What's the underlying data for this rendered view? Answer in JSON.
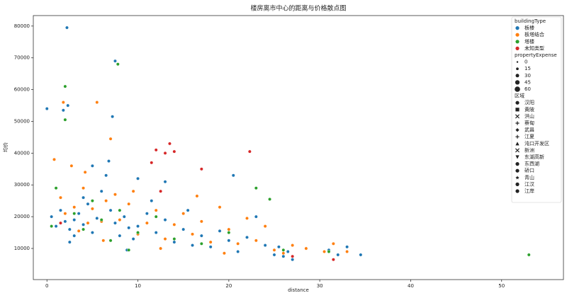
{
  "chart_data": {
    "type": "scatter",
    "title": "楼房离市中心的距离与价格散点图",
    "xlabel": "distance",
    "ylabel": "均价",
    "xlim": [
      -1.5,
      56.8
    ],
    "ylim": [
      200,
      83300
    ],
    "xticks": [
      0,
      10,
      20,
      30,
      40,
      50
    ],
    "yticks": [
      10000,
      20000,
      30000,
      40000,
      50000,
      60000,
      70000,
      80000
    ],
    "grid": false,
    "legend_position": "upper right",
    "legend_hue_title": "buildingType",
    "legend_size_title": "propertyExpense",
    "legend_sizes": [
      0,
      15,
      30,
      45,
      60
    ],
    "legend_style_title": "区域",
    "legend_styles": [
      {
        "name": "汉阳",
        "marker": "circle"
      },
      {
        "name": "黄陂",
        "marker": "square"
      },
      {
        "name": "洪山",
        "marker": "x"
      },
      {
        "name": "蔡甸",
        "marker": "plus"
      },
      {
        "name": "武昌",
        "marker": "diamond"
      },
      {
        "name": "江夏",
        "marker": "plus"
      },
      {
        "name": "沌口开发区",
        "marker": "triangle-up"
      },
      {
        "name": "新洲",
        "marker": "x"
      },
      {
        "name": "东湖高新",
        "marker": "triangle-down"
      },
      {
        "name": "东西湖",
        "marker": "circle"
      },
      {
        "name": "硚口",
        "marker": "circle"
      },
      {
        "name": "青山",
        "marker": "star"
      },
      {
        "name": "江汉",
        "marker": "circle"
      },
      {
        "name": "江岸",
        "marker": "circle"
      }
    ],
    "series": [
      {
        "name": "板楼",
        "color": "#1f77b4",
        "x": [
          0.5,
          1,
          1.5,
          2,
          2.5,
          3,
          3.5,
          4,
          4.5,
          5,
          5.5,
          6,
          6.5,
          7,
          7.5,
          8,
          8.5,
          9,
          9.5,
          10,
          11,
          12,
          13,
          14,
          15,
          16,
          17,
          18,
          19,
          20,
          21,
          22,
          24,
          25,
          26,
          26.5,
          27,
          25.5,
          31,
          32,
          33,
          34.5,
          2.2,
          7.5,
          0,
          1.8,
          7.2,
          2.3,
          10,
          13,
          4,
          3,
          5,
          6.8,
          2.5,
          8.8,
          11.5,
          23,
          20.5,
          15.5
        ],
        "values": [
          20000,
          17000,
          22000,
          18500,
          16000,
          19000,
          21000,
          17500,
          24000,
          15000,
          19500,
          28000,
          33000,
          22000,
          18000,
          14000,
          20000,
          16500,
          13000,
          17000,
          21000,
          15000,
          19000,
          12000,
          16000,
          11000,
          14000,
          10500,
          15500,
          12500,
          9000,
          13500,
          11000,
          8000,
          7500,
          9000,
          6500,
          10500,
          9500,
          8000,
          10500,
          8000,
          79500,
          69000,
          54000,
          53500,
          51500,
          55000,
          32000,
          31000,
          26000,
          14000,
          36000,
          37500,
          12000,
          9500,
          25000,
          20000,
          33000,
          22000
        ]
      },
      {
        "name": "板塔结合",
        "color": "#ff7f0e",
        "x": [
          0.8,
          1.5,
          2,
          3,
          3.5,
          4,
          4.5,
          5,
          5.5,
          6,
          6.5,
          7,
          7.5,
          8,
          9,
          10,
          11,
          12,
          13,
          14,
          15,
          16,
          17,
          18,
          19,
          20,
          21,
          22,
          23,
          24,
          25,
          26,
          27,
          28.5,
          30.5,
          31.5,
          33,
          1.8,
          2.7,
          9.5,
          16.5,
          12.5,
          6.2,
          4.2,
          19.5
        ],
        "values": [
          38000,
          26000,
          21000,
          23000,
          15500,
          29000,
          18000,
          22500,
          56000,
          18500,
          25000,
          44500,
          27000,
          19000,
          24000,
          14500,
          18000,
          22000,
          13000,
          17500,
          21000,
          14500,
          18500,
          12000,
          23000,
          16000,
          11500,
          19500,
          12500,
          17000,
          9500,
          8500,
          11000,
          10000,
          9000,
          11500,
          9000,
          56000,
          36000,
          28000,
          26500,
          10000,
          12500,
          34000,
          8500
        ]
      },
      {
        "name": "塔楼",
        "color": "#2ca02c",
        "x": [
          0.5,
          1,
          2,
          2,
          3,
          4,
          5,
          6,
          7.8,
          8,
          9,
          10,
          12,
          14,
          17,
          20,
          23,
          26,
          31,
          53,
          7,
          24.5
        ],
        "values": [
          17000,
          29000,
          50500,
          61000,
          21000,
          16000,
          25000,
          19000,
          68000,
          22000,
          9500,
          15000,
          20000,
          13000,
          11500,
          15000,
          29000,
          9500,
          9000,
          8000,
          12500,
          25500
        ]
      },
      {
        "name": "未知类型",
        "color": "#d62728",
        "x": [
          11.5,
          12,
          13,
          13.5,
          14,
          22.3,
          17,
          12.5,
          27,
          31.5,
          1.5
        ],
        "values": [
          37000,
          41000,
          40000,
          43000,
          40500,
          40500,
          35000,
          28000,
          7500,
          6500,
          18000
        ]
      }
    ]
  }
}
